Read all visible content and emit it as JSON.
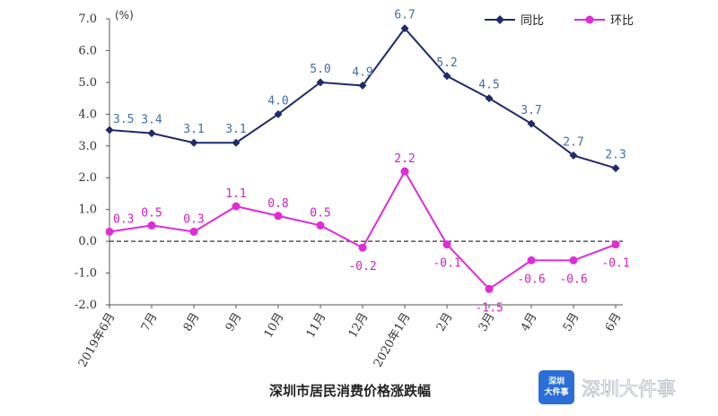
{
  "chart_data": {
    "type": "line",
    "title": "深圳市居民消费价格涨跌幅",
    "ylabel": "(%)",
    "ylim": [
      -2.0,
      7.0
    ],
    "yticks": [
      "7.0",
      "6.0",
      "5.0",
      "4.0",
      "3.0",
      "2.0",
      "1.0",
      "0.0",
      "-1.0",
      "-2.0"
    ],
    "categories": [
      "2019年6月",
      "7月",
      "8月",
      "9月",
      "10月",
      "11月",
      "12月",
      "2020年1月",
      "2月",
      "3月",
      "4月",
      "5月",
      "6月"
    ],
    "series": [
      {
        "name": "同比",
        "color": "#1f2a6b",
        "marker": "diamond",
        "values": [
          3.5,
          3.4,
          3.1,
          3.1,
          4.0,
          5.0,
          4.9,
          6.7,
          5.2,
          4.5,
          3.7,
          2.7,
          2.3
        ],
        "labels": [
          "3.5",
          "3.4",
          "3.1",
          "3.1",
          "4.0",
          "5.0",
          "4.9",
          "6.7",
          "5.2",
          "4.5",
          "3.7",
          "2.7",
          "2.3"
        ]
      },
      {
        "name": "环比",
        "color": "#e02bd6",
        "marker": "circle",
        "values": [
          0.3,
          0.5,
          0.3,
          1.1,
          0.8,
          0.5,
          -0.2,
          2.2,
          -0.1,
          -1.5,
          -0.6,
          -0.6,
          -0.1
        ],
        "labels": [
          "0.3",
          "0.5",
          "0.3",
          "1.1",
          "0.8",
          "0.5",
          "-0.2",
          "2.2",
          "-0.1",
          "-1.5",
          "-0.6",
          "-0.6",
          "-0.1"
        ]
      }
    ],
    "reference_line": {
      "value": 0,
      "style": "dashed"
    },
    "grid": false,
    "legend": "top-right"
  },
  "watermark": {
    "text": "深圳大件事",
    "logo_text": "深圳大件事"
  }
}
